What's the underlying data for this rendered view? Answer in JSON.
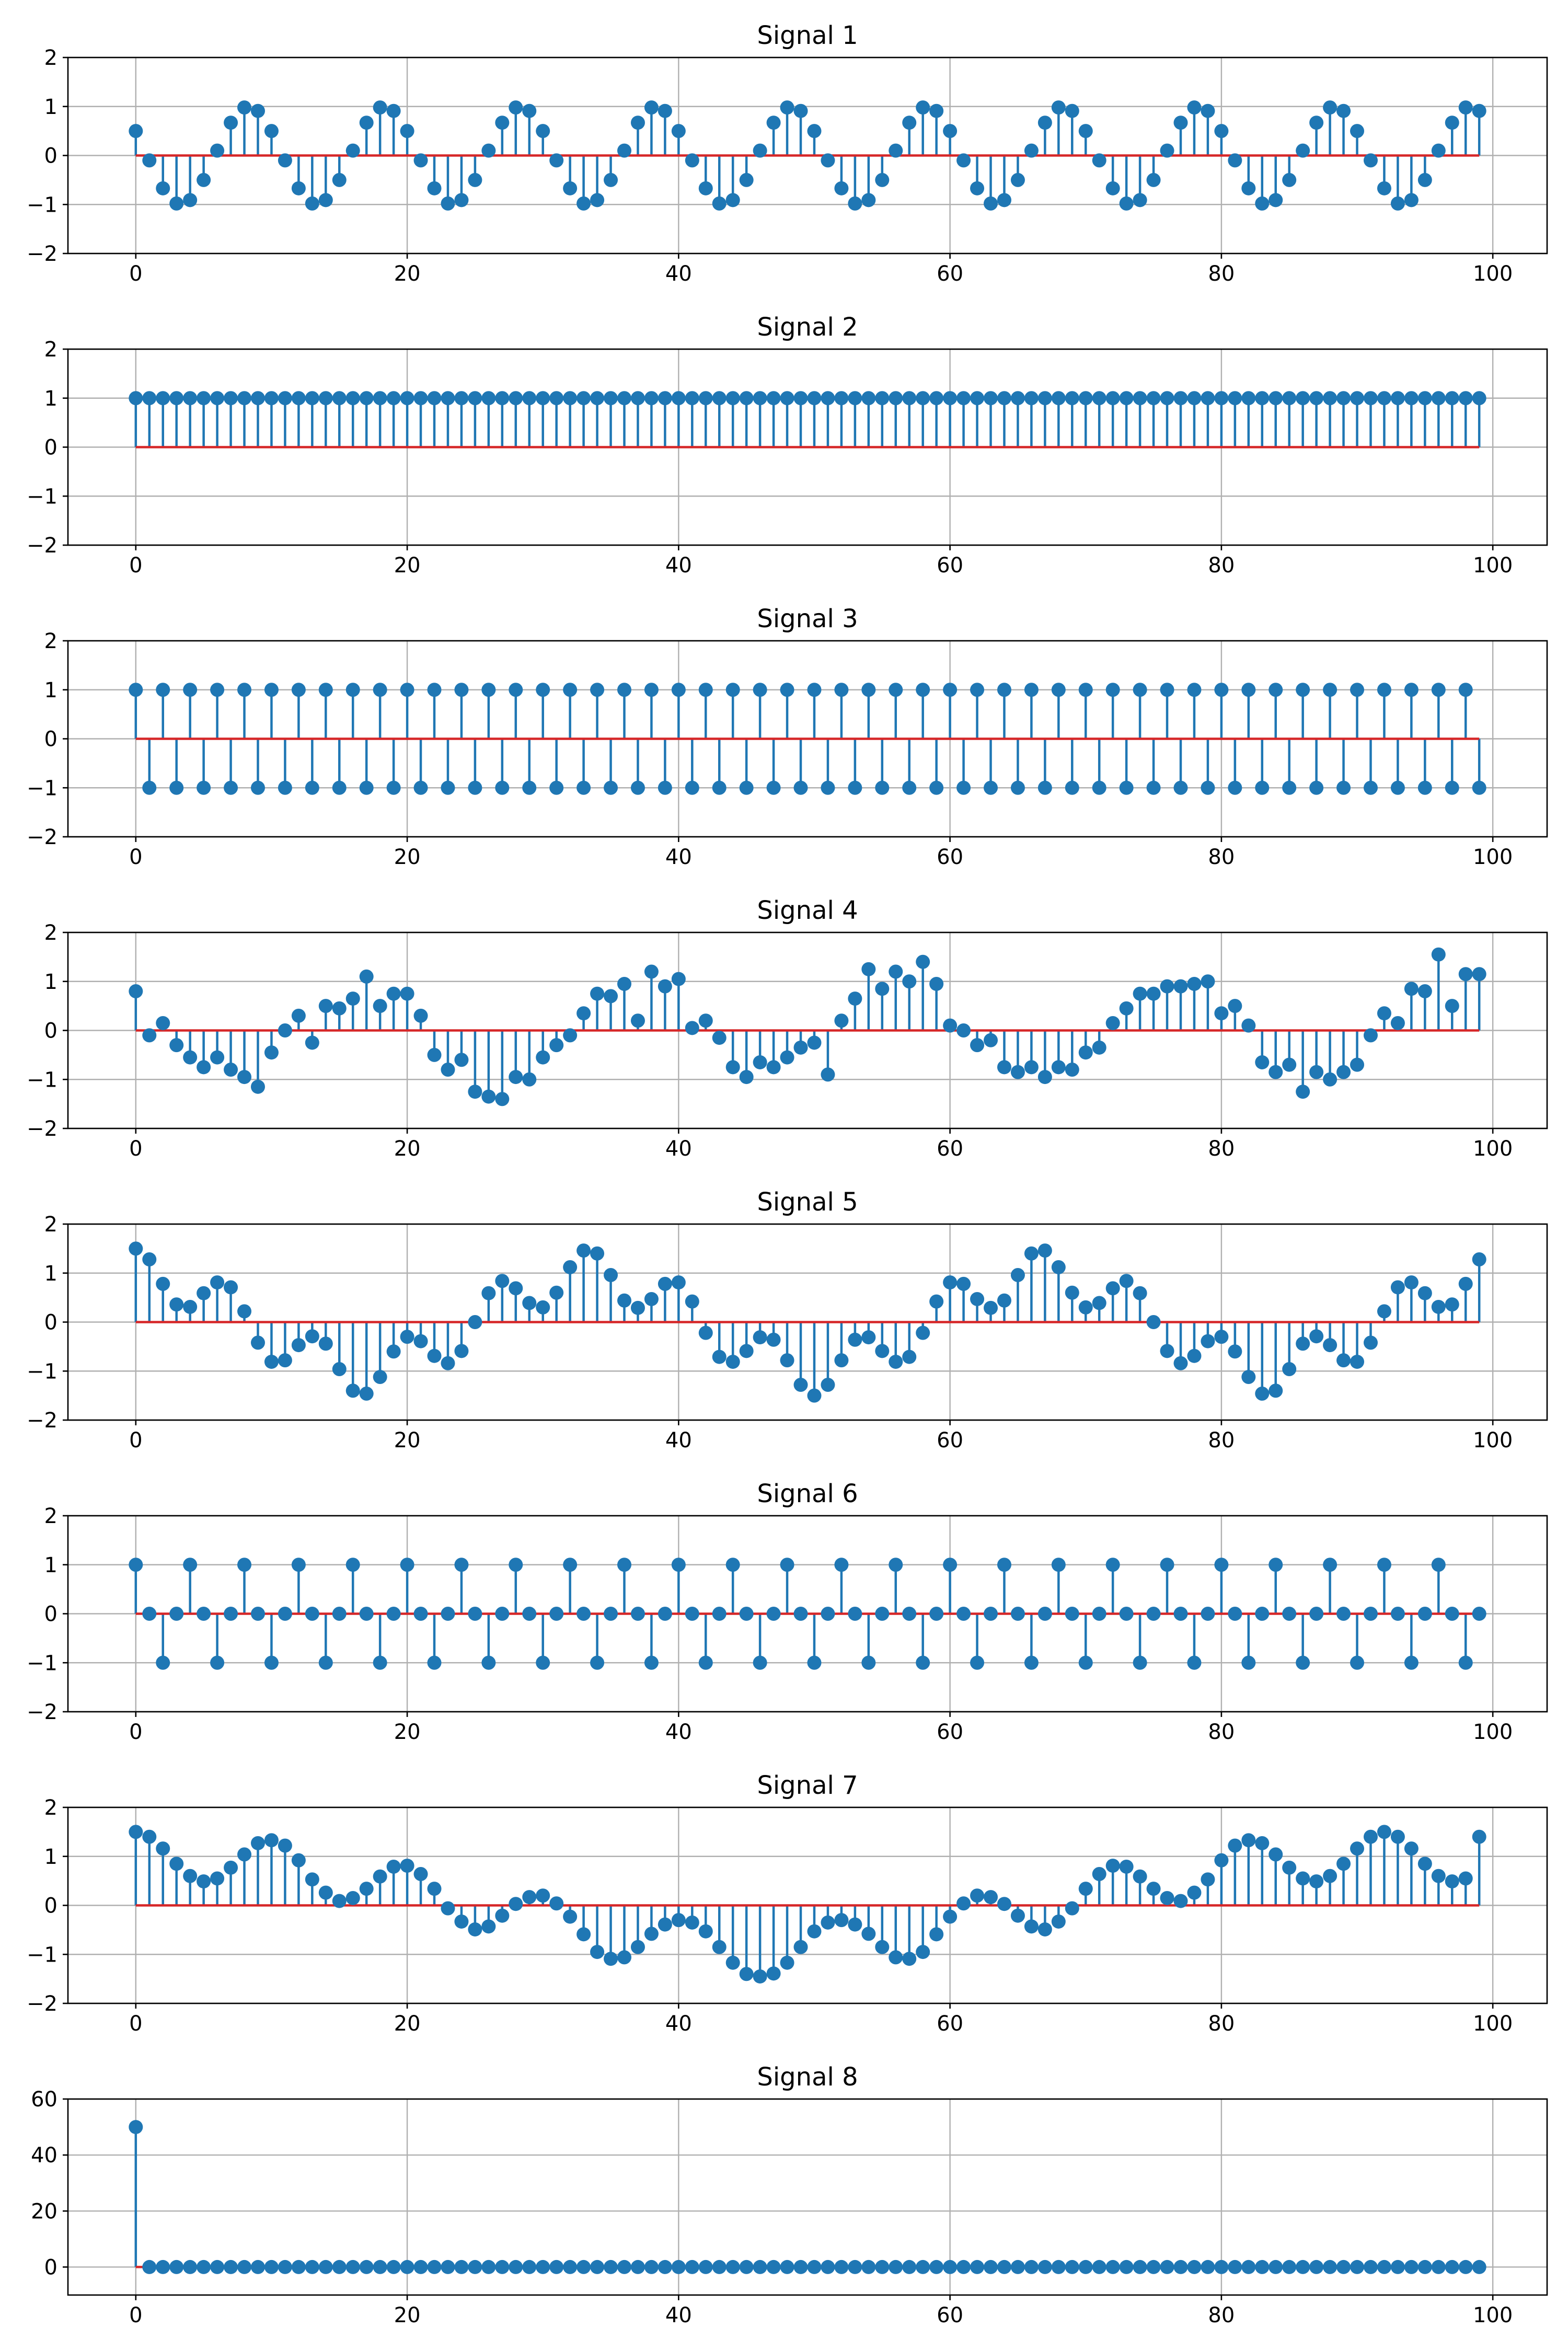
{
  "chart_data": [
    {
      "type": "stem",
      "title": "Signal 1",
      "x_start": 0,
      "x_step": 1,
      "xlim": [
        -5,
        104
      ],
      "ylim": [
        -2,
        2
      ],
      "xticks": [
        0,
        20,
        40,
        60,
        80,
        100
      ],
      "yticks": [
        -2,
        -1,
        0,
        1,
        2
      ],
      "grid": true,
      "values": [
        0.5,
        -0.1,
        -0.67,
        -0.98,
        -0.91,
        -0.5,
        0.1,
        0.67,
        0.98,
        0.91,
        0.5,
        -0.1,
        -0.67,
        -0.98,
        -0.91,
        -0.5,
        0.1,
        0.67,
        0.98,
        0.91,
        0.5,
        -0.1,
        -0.67,
        -0.98,
        -0.91,
        -0.5,
        0.1,
        0.67,
        0.98,
        0.91,
        0.5,
        -0.1,
        -0.67,
        -0.98,
        -0.91,
        -0.5,
        0.1,
        0.67,
        0.98,
        0.91,
        0.5,
        -0.1,
        -0.67,
        -0.98,
        -0.91,
        -0.5,
        0.1,
        0.67,
        0.98,
        0.91,
        0.5,
        -0.1,
        -0.67,
        -0.98,
        -0.91,
        -0.5,
        0.1,
        0.67,
        0.98,
        0.91,
        0.5,
        -0.1,
        -0.67,
        -0.98,
        -0.91,
        -0.5,
        0.1,
        0.67,
        0.98,
        0.91,
        0.5,
        -0.1,
        -0.67,
        -0.98,
        -0.91,
        -0.5,
        0.1,
        0.67,
        0.98,
        0.91,
        0.5,
        -0.1,
        -0.67,
        -0.98,
        -0.91,
        -0.5,
        0.1,
        0.67,
        0.98,
        0.91,
        0.5,
        -0.1,
        -0.67,
        -0.98,
        -0.91,
        -0.5,
        0.1,
        0.67,
        0.98,
        0.91
      ]
    },
    {
      "type": "stem",
      "title": "Signal 2",
      "x_start": 0,
      "x_step": 1,
      "xlim": [
        -5,
        104
      ],
      "ylim": [
        -2,
        2
      ],
      "xticks": [
        0,
        20,
        40,
        60,
        80,
        100
      ],
      "yticks": [
        -2,
        -1,
        0,
        1,
        2
      ],
      "grid": true,
      "values": [
        1,
        1,
        1,
        1,
        1,
        1,
        1,
        1,
        1,
        1,
        1,
        1,
        1,
        1,
        1,
        1,
        1,
        1,
        1,
        1,
        1,
        1,
        1,
        1,
        1,
        1,
        1,
        1,
        1,
        1,
        1,
        1,
        1,
        1,
        1,
        1,
        1,
        1,
        1,
        1,
        1,
        1,
        1,
        1,
        1,
        1,
        1,
        1,
        1,
        1,
        1,
        1,
        1,
        1,
        1,
        1,
        1,
        1,
        1,
        1,
        1,
        1,
        1,
        1,
        1,
        1,
        1,
        1,
        1,
        1,
        1,
        1,
        1,
        1,
        1,
        1,
        1,
        1,
        1,
        1,
        1,
        1,
        1,
        1,
        1,
        1,
        1,
        1,
        1,
        1,
        1,
        1,
        1,
        1,
        1,
        1,
        1,
        1,
        1,
        1
      ]
    },
    {
      "type": "stem",
      "title": "Signal 3",
      "x_start": 0,
      "x_step": 1,
      "xlim": [
        -5,
        104
      ],
      "ylim": [
        -2,
        2
      ],
      "xticks": [
        0,
        20,
        40,
        60,
        80,
        100
      ],
      "yticks": [
        -2,
        -1,
        0,
        1,
        2
      ],
      "grid": true,
      "values": [
        1,
        -1,
        1,
        -1,
        1,
        -1,
        1,
        -1,
        1,
        -1,
        1,
        -1,
        1,
        -1,
        1,
        -1,
        1,
        -1,
        1,
        -1,
        1,
        -1,
        1,
        -1,
        1,
        -1,
        1,
        -1,
        1,
        -1,
        1,
        -1,
        1,
        -1,
        1,
        -1,
        1,
        -1,
        1,
        -1,
        1,
        -1,
        1,
        -1,
        1,
        -1,
        1,
        -1,
        1,
        -1,
        1,
        -1,
        1,
        -1,
        1,
        -1,
        1,
        -1,
        1,
        -1,
        1,
        -1,
        1,
        -1,
        1,
        -1,
        1,
        -1,
        1,
        -1,
        1,
        -1,
        1,
        -1,
        1,
        -1,
        1,
        -1,
        1,
        -1,
        1,
        -1,
        1,
        -1,
        1,
        -1,
        1,
        -1,
        1,
        -1,
        1,
        -1,
        1,
        -1,
        1,
        -1,
        1,
        -1,
        1,
        -1
      ]
    },
    {
      "type": "stem",
      "title": "Signal 4",
      "x_start": 0,
      "x_step": 1,
      "xlim": [
        -5,
        104
      ],
      "ylim": [
        -2,
        2
      ],
      "xticks": [
        0,
        20,
        40,
        60,
        80,
        100
      ],
      "yticks": [
        -2,
        -1,
        0,
        1,
        2
      ],
      "grid": true,
      "values": [
        0.8,
        -0.1,
        0.15,
        -0.3,
        -0.55,
        -0.75,
        -0.55,
        -0.8,
        -0.95,
        -1.15,
        -0.45,
        0.0,
        0.3,
        -0.25,
        0.5,
        0.45,
        0.65,
        1.1,
        0.5,
        0.75,
        0.75,
        0.3,
        -0.5,
        -0.8,
        -0.6,
        -1.25,
        -1.35,
        -1.4,
        -0.95,
        -1.0,
        -0.55,
        -0.3,
        -0.1,
        0.35,
        0.75,
        0.7,
        0.95,
        0.2,
        1.2,
        0.9,
        1.05,
        0.05,
        0.2,
        -0.15,
        -0.75,
        -0.95,
        -0.65,
        -0.75,
        -0.55,
        -0.35,
        -0.25,
        -0.9,
        0.2,
        0.65,
        1.25,
        0.85,
        1.2,
        1.0,
        1.4,
        0.95,
        0.1,
        0.0,
        -0.3,
        -0.2,
        -0.75,
        -0.85,
        -0.75,
        -0.95,
        -0.75,
        -0.8,
        -0.45,
        -0.35,
        0.15,
        0.45,
        0.75,
        0.75,
        0.9,
        0.9,
        0.95,
        1.0,
        0.35,
        0.5,
        0.1,
        -0.65,
        -0.85,
        -0.7,
        -1.25,
        -0.85,
        -1.0,
        -0.85,
        -0.7,
        -0.1,
        0.35,
        0.15,
        0.85,
        0.8,
        1.55,
        0.5,
        1.15,
        1.15
      ]
    },
    {
      "type": "stem",
      "title": "Signal 5",
      "x_start": 0,
      "x_step": 1,
      "xlim": [
        -5,
        104
      ],
      "ylim": [
        -2,
        2
      ],
      "xticks": [
        0,
        20,
        40,
        60,
        80,
        100
      ],
      "yticks": [
        -2,
        -1,
        0,
        1,
        2
      ],
      "grid": true,
      "values": [
        1.5,
        1.28,
        0.78,
        0.36,
        0.31,
        0.59,
        0.81,
        0.71,
        0.22,
        -0.42,
        -0.81,
        -0.78,
        -0.47,
        -0.29,
        -0.44,
        -0.96,
        -1.4,
        -1.46,
        -1.12,
        -0.6,
        -0.3,
        -0.39,
        -0.69,
        -0.84,
        -0.59,
        0.0,
        0.59,
        0.84,
        0.69,
        0.39,
        0.3,
        0.6,
        1.12,
        1.46,
        1.4,
        0.96,
        0.44,
        0.29,
        0.47,
        0.78,
        0.81,
        0.42,
        -0.22,
        -0.71,
        -0.81,
        -0.59,
        -0.31,
        -0.36,
        -0.78,
        -1.28,
        -1.5,
        -1.28,
        -0.78,
        -0.36,
        -0.31,
        -0.59,
        -0.81,
        -0.71,
        -0.22,
        0.42,
        0.81,
        0.78,
        0.47,
        0.29,
        0.44,
        0.96,
        1.4,
        1.46,
        1.12,
        0.6,
        0.3,
        0.39,
        0.69,
        0.84,
        0.59,
        0.0,
        -0.59,
        -0.84,
        -0.69,
        -0.39,
        -0.3,
        -0.6,
        -1.12,
        -1.46,
        -1.4,
        -0.96,
        -0.44,
        -0.29,
        -0.47,
        -0.78,
        -0.81,
        -0.42,
        0.22,
        0.71,
        0.81,
        0.59,
        0.31,
        0.36,
        0.78,
        1.28
      ]
    },
    {
      "type": "stem",
      "title": "Signal 6",
      "x_start": 0,
      "x_step": 1,
      "xlim": [
        -5,
        104
      ],
      "ylim": [
        -2,
        2
      ],
      "xticks": [
        0,
        20,
        40,
        60,
        80,
        100
      ],
      "yticks": [
        -2,
        -1,
        0,
        1,
        2
      ],
      "grid": true,
      "values": [
        1,
        0,
        -1,
        0,
        1,
        0,
        -1,
        0,
        1,
        0,
        -1,
        0,
        1,
        0,
        -1,
        0,
        1,
        0,
        -1,
        0,
        1,
        0,
        -1,
        0,
        1,
        0,
        -1,
        0,
        1,
        0,
        -1,
        0,
        1,
        0,
        -1,
        0,
        1,
        0,
        -1,
        0,
        1,
        0,
        -1,
        0,
        1,
        0,
        -1,
        0,
        1,
        0,
        -1,
        0,
        1,
        0,
        -1,
        0,
        1,
        0,
        -1,
        0,
        1,
        0,
        -1,
        0,
        1,
        0,
        -1,
        0,
        1,
        0,
        -1,
        0,
        1,
        0,
        -1,
        0,
        1,
        0,
        -1,
        0,
        1,
        0,
        -1,
        0,
        1,
        0,
        -1,
        0,
        1,
        0,
        -1,
        0,
        1,
        0,
        -1,
        0,
        1,
        0,
        -1,
        0
      ]
    },
    {
      "type": "stem",
      "title": "Signal 7",
      "x_start": 0,
      "x_step": 1,
      "xlim": [
        -5,
        104
      ],
      "ylim": [
        -2,
        2
      ],
      "xticks": [
        0,
        20,
        40,
        60,
        80,
        100
      ],
      "yticks": [
        -2,
        -1,
        0,
        1,
        2
      ],
      "grid": true,
      "values": [
        1.5,
        1.4,
        1.16,
        0.85,
        0.6,
        0.49,
        0.55,
        0.77,
        1.04,
        1.27,
        1.33,
        1.22,
        0.92,
        0.53,
        0.26,
        0.09,
        0.15,
        0.34,
        0.59,
        0.79,
        0.81,
        0.64,
        0.34,
        -0.06,
        -0.33,
        -0.49,
        -0.43,
        -0.21,
        0.03,
        0.17,
        0.2,
        0.04,
        -0.23,
        -0.59,
        -0.95,
        -1.09,
        -1.06,
        -0.85,
        -0.58,
        -0.39,
        -0.3,
        -0.35,
        -0.53,
        -0.85,
        -1.17,
        -1.4,
        -1.45,
        -1.39,
        -1.17,
        -0.85,
        -0.53,
        -0.35,
        -0.3,
        -0.39,
        -0.58,
        -0.85,
        -1.06,
        -1.09,
        -0.95,
        -0.59,
        -0.23,
        0.04,
        0.2,
        0.17,
        0.03,
        -0.21,
        -0.43,
        -0.49,
        -0.33,
        -0.06,
        0.34,
        0.64,
        0.81,
        0.79,
        0.59,
        0.34,
        0.15,
        0.09,
        0.26,
        0.53,
        0.92,
        1.22,
        1.33,
        1.27,
        1.04,
        0.77,
        0.55,
        0.49,
        0.6,
        0.85,
        1.16,
        1.4,
        1.5,
        1.4,
        1.16,
        0.85,
        0.6,
        0.49,
        0.55,
        1.4
      ]
    },
    {
      "type": "stem",
      "title": "Signal 8",
      "x_start": 0,
      "x_step": 1,
      "xlim": [
        -5,
        104
      ],
      "ylim": [
        -10,
        60
      ],
      "xticks": [
        0,
        20,
        40,
        60,
        80,
        100
      ],
      "yticks": [
        0,
        20,
        40,
        60
      ],
      "grid": true,
      "values": [
        50,
        0,
        0,
        0,
        0,
        0,
        0,
        0,
        0,
        0,
        0,
        0,
        0,
        0,
        0,
        0,
        0,
        0,
        0,
        0,
        0,
        0,
        0,
        0,
        0,
        0,
        0,
        0,
        0,
        0,
        0,
        0,
        0,
        0,
        0,
        0,
        0,
        0,
        0,
        0,
        0,
        0,
        0,
        0,
        0,
        0,
        0,
        0,
        0,
        0,
        0,
        0,
        0,
        0,
        0,
        0,
        0,
        0,
        0,
        0,
        0,
        0,
        0,
        0,
        0,
        0,
        0,
        0,
        0,
        0,
        0,
        0,
        0,
        0,
        0,
        0,
        0,
        0,
        0,
        0,
        0,
        0,
        0,
        0,
        0,
        0,
        0,
        0,
        0,
        0,
        0,
        0,
        0,
        0,
        0,
        0,
        0,
        0,
        0,
        0
      ]
    }
  ],
  "colors": {
    "stem": "#1f77b4",
    "marker": "#1f77b4",
    "baseline": "#d62728",
    "grid": "#b0b0b0",
    "axis": "#000000"
  }
}
